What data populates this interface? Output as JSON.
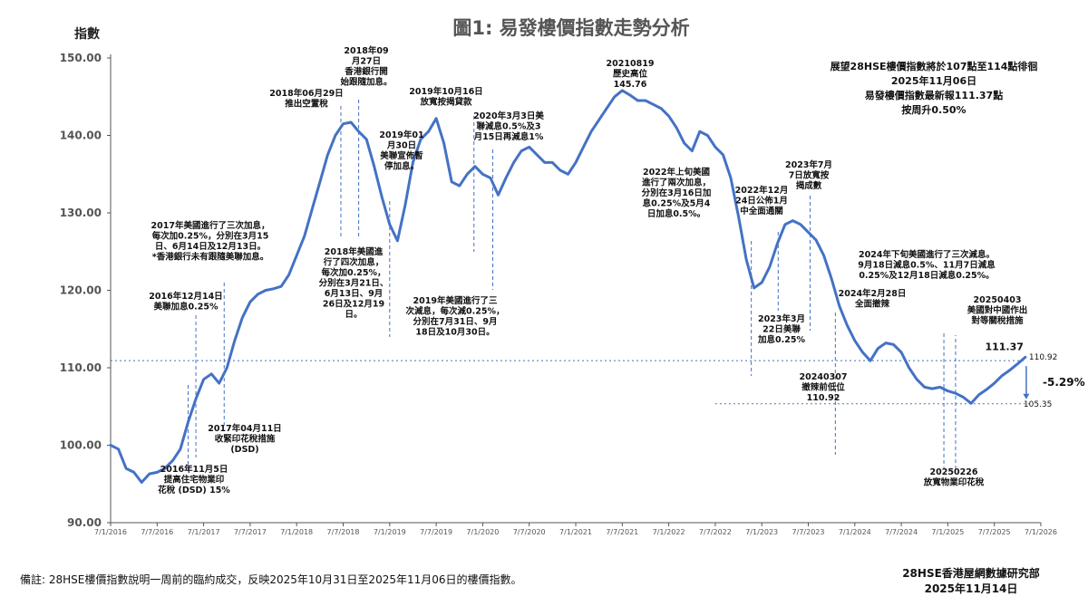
{
  "chart_data": {
    "type": "line",
    "title": "圖1: 易發樓價指數走勢分析",
    "ylabel": "指數",
    "ylim": [
      90,
      150
    ],
    "yticks": [
      "90.00",
      "100.00",
      "110.00",
      "120.00",
      "130.00",
      "140.00",
      "150.00"
    ],
    "xlim": [
      "2016-01",
      "2026-01"
    ],
    "xticks": [
      {
        "date": "2016-01",
        "label": "7/1/2016"
      },
      {
        "date": "2016-07",
        "label": "7/7/2016"
      },
      {
        "date": "2017-01",
        "label": "7/1/2017"
      },
      {
        "date": "2017-07",
        "label": "7/7/2017"
      },
      {
        "date": "2018-01",
        "label": "7/1/2018"
      },
      {
        "date": "2018-07",
        "label": "7/7/2018"
      },
      {
        "date": "2019-01",
        "label": "7/1/2019"
      },
      {
        "date": "2019-07",
        "label": "7/7/2019"
      },
      {
        "date": "2020-01",
        "label": "7/1/2020"
      },
      {
        "date": "2020-07",
        "label": "7/7/2020"
      },
      {
        "date": "2021-01",
        "label": "7/1/2021"
      },
      {
        "date": "2021-07",
        "label": "7/7/2021"
      },
      {
        "date": "2022-01",
        "label": "7/1/2022"
      },
      {
        "date": "2022-07",
        "label": "7/7/2022"
      },
      {
        "date": "2023-01",
        "label": "7/1/2023"
      },
      {
        "date": "2023-07",
        "label": "7/7/2023"
      },
      {
        "date": "2024-01",
        "label": "7/1/2024"
      },
      {
        "date": "2024-07",
        "label": "7/7/2024"
      },
      {
        "date": "2025-01",
        "label": "7/1/2025"
      },
      {
        "date": "2025-07",
        "label": "7/7/2025"
      },
      {
        "date": "2026-01",
        "label": "7/1/2026"
      }
    ],
    "series": [
      {
        "points": [
          [
            "2016-01",
            100.0
          ],
          [
            "2016-02",
            99.5
          ],
          [
            "2016-03",
            97.0
          ],
          [
            "2016-04",
            96.5
          ],
          [
            "2016-05",
            95.2
          ],
          [
            "2016-06",
            96.3
          ],
          [
            "2016-07",
            96.5
          ],
          [
            "2016-08",
            97.0
          ],
          [
            "2016-09",
            98.0
          ],
          [
            "2016-10",
            99.5
          ],
          [
            "2016-11",
            103.0
          ],
          [
            "2016-12",
            106.0
          ],
          [
            "2017-01",
            108.5
          ],
          [
            "2017-02",
            109.2
          ],
          [
            "2017-03",
            108.0
          ],
          [
            "2017-04",
            110.0
          ],
          [
            "2017-05",
            113.5
          ],
          [
            "2017-06",
            116.5
          ],
          [
            "2017-07",
            118.5
          ],
          [
            "2017-08",
            119.5
          ],
          [
            "2017-09",
            120.0
          ],
          [
            "2017-10",
            120.2
          ],
          [
            "2017-11",
            120.5
          ],
          [
            "2017-12",
            122.0
          ],
          [
            "2018-01",
            124.5
          ],
          [
            "2018-02",
            127.0
          ],
          [
            "2018-03",
            130.5
          ],
          [
            "2018-04",
            134.0
          ],
          [
            "2018-05",
            137.5
          ],
          [
            "2018-06",
            140.0
          ],
          [
            "2018-07",
            141.5
          ],
          [
            "2018-08",
            141.7
          ],
          [
            "2018-09",
            140.5
          ],
          [
            "2018-10",
            139.5
          ],
          [
            "2018-11",
            136.0
          ],
          [
            "2018-12",
            132.0
          ],
          [
            "2019-01",
            128.5
          ],
          [
            "2019-02",
            126.4
          ],
          [
            "2019-03",
            131.0
          ],
          [
            "2019-04",
            136.5
          ],
          [
            "2019-05",
            139.5
          ],
          [
            "2019-06",
            140.5
          ],
          [
            "2019-07",
            142.2
          ],
          [
            "2019-08",
            139.0
          ],
          [
            "2019-09",
            134.0
          ],
          [
            "2019-10",
            133.5
          ],
          [
            "2019-11",
            135.0
          ],
          [
            "2019-12",
            136.0
          ],
          [
            "2020-01",
            135.0
          ],
          [
            "2020-02",
            134.5
          ],
          [
            "2020-03",
            132.3
          ],
          [
            "2020-04",
            134.5
          ],
          [
            "2020-05",
            136.5
          ],
          [
            "2020-06",
            138.0
          ],
          [
            "2020-07",
            138.5
          ],
          [
            "2020-08",
            137.5
          ],
          [
            "2020-09",
            136.5
          ],
          [
            "2020-10",
            136.5
          ],
          [
            "2020-11",
            135.5
          ],
          [
            "2020-12",
            135.0
          ],
          [
            "2021-01",
            136.5
          ],
          [
            "2021-02",
            138.5
          ],
          [
            "2021-03",
            140.5
          ],
          [
            "2021-04",
            142.0
          ],
          [
            "2021-05",
            143.5
          ],
          [
            "2021-06",
            145.0
          ],
          [
            "2021-07",
            145.8
          ],
          [
            "2021-08",
            145.2
          ],
          [
            "2021-09",
            144.5
          ],
          [
            "2021-10",
            144.5
          ],
          [
            "2021-11",
            144.0
          ],
          [
            "2021-12",
            143.5
          ],
          [
            "2022-01",
            142.5
          ],
          [
            "2022-02",
            141.0
          ],
          [
            "2022-03",
            139.0
          ],
          [
            "2022-04",
            138.0
          ],
          [
            "2022-05",
            140.5
          ],
          [
            "2022-06",
            140.0
          ],
          [
            "2022-07",
            138.5
          ],
          [
            "2022-08",
            137.5
          ],
          [
            "2022-09",
            134.5
          ],
          [
            "2022-10",
            129.5
          ],
          [
            "2022-11",
            124.0
          ],
          [
            "2022-12",
            120.3
          ],
          [
            "2023-01",
            121.0
          ],
          [
            "2023-02",
            123.0
          ],
          [
            "2023-03",
            126.0
          ],
          [
            "2023-04",
            128.5
          ],
          [
            "2023-05",
            129.0
          ],
          [
            "2023-06",
            128.5
          ],
          [
            "2023-07",
            127.5
          ],
          [
            "2023-08",
            126.5
          ],
          [
            "2023-09",
            124.5
          ],
          [
            "2023-10",
            121.5
          ],
          [
            "2023-11",
            118.0
          ],
          [
            "2023-12",
            115.5
          ],
          [
            "2024-01",
            113.5
          ],
          [
            "2024-02",
            112.0
          ],
          [
            "2024-03",
            110.9
          ],
          [
            "2024-04",
            112.5
          ],
          [
            "2024-05",
            113.2
          ],
          [
            "2024-06",
            113.0
          ],
          [
            "2024-07",
            112.0
          ],
          [
            "2024-08",
            110.0
          ],
          [
            "2024-09",
            108.5
          ],
          [
            "2024-10",
            107.5
          ],
          [
            "2024-11",
            107.3
          ],
          [
            "2024-12",
            107.5
          ],
          [
            "2025-01",
            107.0
          ],
          [
            "2025-02",
            106.7
          ],
          [
            "2025-03",
            106.2
          ],
          [
            "2025-04",
            105.4
          ],
          [
            "2025-05",
            106.5
          ],
          [
            "2025-06",
            107.2
          ],
          [
            "2025-07",
            108.0
          ],
          [
            "2025-08",
            109.0
          ],
          [
            "2025-09",
            109.7
          ],
          [
            "2025-10",
            110.5
          ],
          [
            "2025-11",
            111.37
          ]
        ]
      }
    ],
    "reference_lines": [
      {
        "value": 110.92,
        "label": "110.92",
        "from": "2016-01",
        "to": "2025-11"
      },
      {
        "value": 105.35,
        "label": "105.35",
        "from": "2022-07",
        "to": "2025-12"
      }
    ],
    "change_label": "-5.29%",
    "last_value_label": "111.37",
    "annotations": [
      {
        "date": "2016-11",
        "lines": [
          "2016年11月5日",
          "提高住宅物業印",
          "花稅 (DSD) 15%"
        ]
      },
      {
        "date": "2016-12",
        "lines": [
          "2016年12月14日",
          "美聯加息0.25%"
        ]
      },
      {
        "date": "2017-04",
        "lines": [
          "2017年04月11日",
          "收緊印花稅措施",
          "(DSD)"
        ]
      },
      {
        "date": "2017-03",
        "lines": [
          "2017年美國進行了三次加息，",
          "每次加0.25%，分別在3月15",
          "日、6月14日及12月13日。",
          "*香港銀行未有跟隨美聯加息。"
        ]
      },
      {
        "date": "2018-06",
        "lines": [
          "2018年06月29日",
          "推出空置稅"
        ]
      },
      {
        "date": "2018-09",
        "lines": [
          "2018年09",
          "月27日",
          "香港銀行開",
          "始跟隨加息。"
        ]
      },
      {
        "date": "2018-06",
        "lines": [
          "2018年美國進",
          "行了四次加息，",
          "每次加0.25%，",
          "分別在3月21日、",
          "6月13日、9月",
          "26日及12月19",
          "日。"
        ]
      },
      {
        "date": "2019-01",
        "lines": [
          "2019年01",
          "月30日",
          "美聯宣佈暫",
          "停加息。"
        ]
      },
      {
        "date": "2019-10",
        "lines": [
          "2019年10月16日",
          "放寬按揭貸款"
        ]
      },
      {
        "date": "2019-10",
        "lines": [
          "2019年美國進行了三",
          "次減息，每次減0.25%，",
          "分別在7月31日、9月",
          "18日及10月30日。"
        ]
      },
      {
        "date": "2020-03",
        "lines": [
          "2020年3月3日美",
          "聯減息0.5%及3",
          "月15日再減息1%"
        ]
      },
      {
        "date": "2021-08",
        "lines": [
          "20210819",
          "歷史高位",
          "145.76"
        ]
      },
      {
        "date": "2022-03",
        "lines": [
          "2022年上旬美國",
          "進行了兩次加息，",
          "分別在3月16日加",
          "息0.25%及5月4",
          "日加息0.5%。"
        ]
      },
      {
        "date": "2022-12",
        "lines": [
          "2022年12月",
          "24日公佈1月",
          "中全面通關"
        ]
      },
      {
        "date": "2023-03",
        "lines": [
          "2023年3月",
          "22日美聯",
          "加息0.25%"
        ]
      },
      {
        "date": "2023-07",
        "lines": [
          "2023年7月",
          "7日放寬按",
          "揭成數"
        ]
      },
      {
        "date": "2024-02",
        "lines": [
          "2024年2月28日",
          "全面撤辣"
        ]
      },
      {
        "date": "2024-03",
        "lines": [
          "20240307",
          "撤辣前低位",
          "110.92"
        ]
      },
      {
        "date": "2024-09",
        "lines": [
          "2024年下旬美國進行了三次減息。",
          "9月18日減息0.5%、11月7日減息",
          "0.25%及12月18日減息0.25%。"
        ]
      },
      {
        "date": "2025-02",
        "lines": [
          "20250226",
          "放寬物業印花稅"
        ]
      },
      {
        "date": "2025-04",
        "lines": [
          "20250403",
          "美國對中國作出",
          "對等關稅措施"
        ]
      }
    ],
    "outlook": [
      "展望28HSE樓價指數將於107點至114點徘徊",
      "2025年11月06日",
      "易發樓價指數最新報111.37點",
      "按周升0.50%"
    ]
  },
  "footer": {
    "note": "備註: 28HSE樓價指數說明一周前的臨約成交，反映2025年10月31日至2025年11月06日的樓價指數。",
    "source": "28HSE香港屋網數據研究部",
    "date": "2025年11月14日"
  }
}
